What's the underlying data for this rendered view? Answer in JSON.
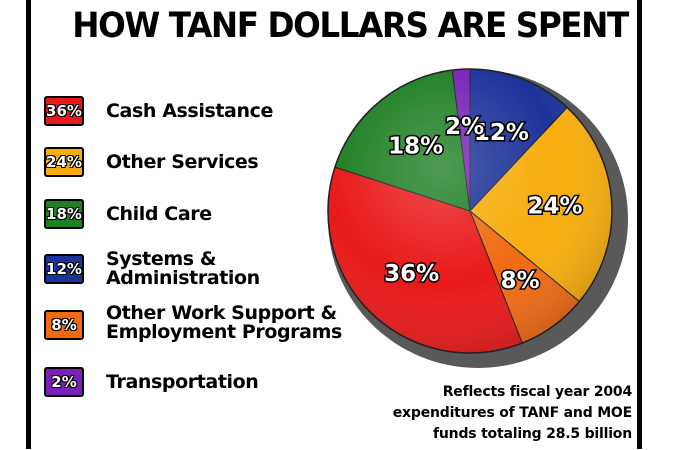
{
  "chart_data": {
    "type": "pie",
    "title": "HOW TANF DOLLARS ARE SPENT",
    "categories": [
      "Cash Assistance",
      "Other Services",
      "Child Care",
      "Systems & Administration",
      "Other Work Support & Employment Programs",
      "Transportation"
    ],
    "values": [
      36,
      24,
      18,
      12,
      8,
      2
    ],
    "value_labels": [
      "36%",
      "24%",
      "18%",
      "12%",
      "8%",
      "2%"
    ],
    "colors": [
      "#e81919",
      "#f7ad0c",
      "#1e7f23",
      "#1c3399",
      "#f06a12",
      "#7a22b8"
    ],
    "legend_position": "left",
    "note_lines": [
      "Reflects fiscal year 2004",
      "expenditures of TANF and MOE",
      "funds totaling 28.5 billion"
    ]
  },
  "legend": [
    {
      "box": "36%",
      "lines": [
        "Cash Assistance"
      ]
    },
    {
      "box": "24%",
      "lines": [
        "Other Services"
      ]
    },
    {
      "box": "18%",
      "lines": [
        "Child Care"
      ]
    },
    {
      "box": "12%",
      "lines": [
        "Systems &",
        "Administration"
      ]
    },
    {
      "box": "8%",
      "lines": [
        "Other Work Support &",
        "Employment Programs"
      ]
    },
    {
      "box": "2%",
      "lines": [
        "Transportation"
      ]
    }
  ]
}
